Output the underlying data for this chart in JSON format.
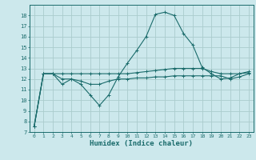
{
  "xlabel": "Humidex (Indice chaleur)",
  "bg_color": "#cce8ec",
  "grid_color": "#aacccc",
  "line_color": "#1a6b6b",
  "x_values": [
    0,
    1,
    2,
    3,
    4,
    5,
    6,
    7,
    8,
    9,
    10,
    11,
    12,
    13,
    14,
    15,
    16,
    17,
    18,
    19,
    20,
    21,
    22,
    23
  ],
  "line1": [
    7.5,
    12.5,
    12.5,
    11.5,
    12.0,
    11.5,
    10.5,
    9.5,
    10.5,
    12.2,
    13.5,
    14.7,
    16.0,
    18.1,
    18.3,
    18.0,
    16.3,
    15.2,
    13.1,
    12.5,
    12.0,
    12.1,
    12.5,
    12.7
  ],
  "line2": [
    7.5,
    12.5,
    12.5,
    12.5,
    12.5,
    12.5,
    12.5,
    12.5,
    12.5,
    12.5,
    12.5,
    12.6,
    12.7,
    12.8,
    12.9,
    13.0,
    13.0,
    13.0,
    13.0,
    12.7,
    12.5,
    12.5,
    12.5,
    12.6
  ],
  "line3": [
    7.5,
    12.5,
    12.5,
    12.0,
    12.0,
    11.8,
    11.5,
    11.5,
    11.8,
    12.0,
    12.0,
    12.1,
    12.1,
    12.2,
    12.2,
    12.3,
    12.3,
    12.3,
    12.3,
    12.3,
    12.3,
    12.0,
    12.2,
    12.5
  ],
  "ylim": [
    7,
    19
  ],
  "yticks": [
    7,
    8,
    9,
    10,
    11,
    12,
    13,
    14,
    15,
    16,
    17,
    18
  ],
  "xticks": [
    0,
    1,
    2,
    3,
    4,
    5,
    6,
    7,
    8,
    9,
    10,
    11,
    12,
    13,
    14,
    15,
    16,
    17,
    18,
    19,
    20,
    21,
    22,
    23
  ],
  "xtick_labels": [
    "0",
    "1",
    "2",
    "3",
    "4",
    "5",
    "6",
    "7",
    "8",
    "9",
    "10",
    "11",
    "12",
    "13",
    "14",
    "15",
    "16",
    "17",
    "18",
    "19",
    "20",
    "21",
    "22",
    "23"
  ]
}
